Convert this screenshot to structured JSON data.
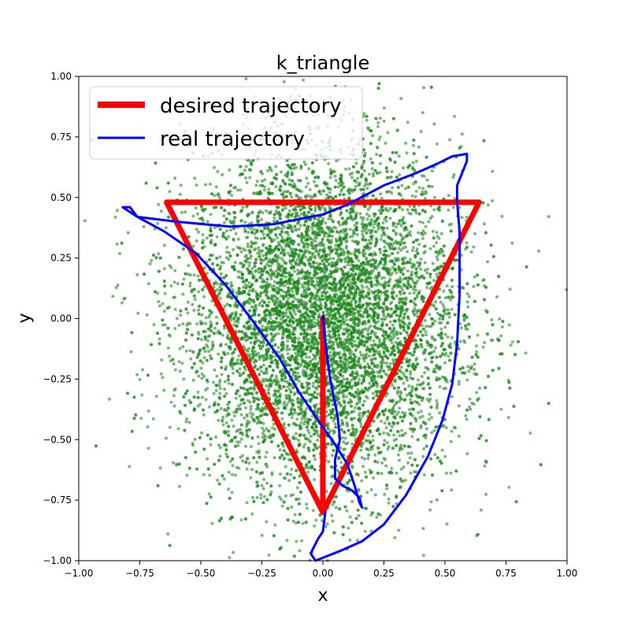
{
  "chart_data": {
    "type": "line",
    "title": "k_triangle",
    "xlabel": "x",
    "ylabel": "y",
    "xlim": [
      -1.0,
      1.0
    ],
    "ylim": [
      -1.0,
      1.0
    ],
    "x_ticks": [
      "−1.00",
      "−0.75",
      "−0.50",
      "−0.25",
      "0.00",
      "0.25",
      "0.50",
      "0.75",
      "1.00"
    ],
    "y_ticks": [
      "−1.00",
      "−0.75",
      "−0.50",
      "−0.25",
      "0.00",
      "0.25",
      "0.50",
      "0.75",
      "1.00"
    ],
    "x_tick_values": [
      -1.0,
      -0.75,
      -0.5,
      -0.25,
      0.0,
      0.25,
      0.5,
      0.75,
      1.0
    ],
    "y_tick_values": [
      -1.0,
      -0.75,
      -0.5,
      -0.25,
      0.0,
      0.25,
      0.5,
      0.75,
      1.0
    ],
    "grid": false,
    "legend_position": "upper-left",
    "series": [
      {
        "name": "desired trajectory",
        "color": "#ff0000",
        "points": [
          [
            0.0,
            0.0
          ],
          [
            0.0,
            -0.8
          ],
          [
            0.64,
            0.48
          ],
          [
            -0.64,
            0.48
          ],
          [
            0.0,
            -0.8
          ]
        ]
      },
      {
        "name": "real trajectory",
        "color": "#0000ff",
        "points": [
          [
            0.0,
            0.01
          ],
          [
            0.01,
            -0.1
          ],
          [
            0.03,
            -0.25
          ],
          [
            0.06,
            -0.4
          ],
          [
            0.07,
            -0.5
          ],
          [
            0.05,
            -0.58
          ],
          [
            0.05,
            -0.66
          ],
          [
            0.08,
            -0.69
          ],
          [
            0.12,
            -0.71
          ],
          [
            0.15,
            -0.74
          ],
          [
            0.16,
            -0.78
          ],
          [
            0.15,
            -0.76
          ],
          [
            0.13,
            -0.69
          ],
          [
            0.1,
            -0.6
          ],
          [
            0.05,
            -0.52
          ],
          [
            -0.02,
            -0.42
          ],
          [
            -0.1,
            -0.3
          ],
          [
            -0.18,
            -0.16
          ],
          [
            -0.28,
            -0.02
          ],
          [
            -0.4,
            0.14
          ],
          [
            -0.52,
            0.27
          ],
          [
            -0.65,
            0.36
          ],
          [
            -0.76,
            0.42
          ],
          [
            -0.79,
            0.46
          ],
          [
            -0.82,
            0.46
          ],
          [
            -0.76,
            0.42
          ],
          [
            -0.6,
            0.4
          ],
          [
            -0.38,
            0.38
          ],
          [
            -0.2,
            0.39
          ],
          [
            0.0,
            0.43
          ],
          [
            0.1,
            0.47
          ],
          [
            0.25,
            0.55
          ],
          [
            0.38,
            0.6
          ],
          [
            0.47,
            0.64
          ],
          [
            0.53,
            0.67
          ],
          [
            0.59,
            0.68
          ],
          [
            0.59,
            0.65
          ],
          [
            0.55,
            0.55
          ],
          [
            0.55,
            0.48
          ],
          [
            0.56,
            0.36
          ],
          [
            0.56,
            0.1
          ],
          [
            0.55,
            -0.1
          ],
          [
            0.53,
            -0.27
          ],
          [
            0.49,
            -0.42
          ],
          [
            0.43,
            -0.57
          ],
          [
            0.34,
            -0.73
          ],
          [
            0.25,
            -0.85
          ],
          [
            0.16,
            -0.92
          ],
          [
            0.07,
            -0.96
          ],
          [
            -0.03,
            -1.0
          ],
          [
            -0.05,
            -0.97
          ],
          [
            -0.02,
            -0.91
          ],
          [
            0.0,
            -0.88
          ],
          [
            0.01,
            -0.8
          ]
        ]
      }
    ],
    "scatter": {
      "color": "#228B22",
      "count": 9000,
      "center": [
        0.0,
        0.0
      ],
      "std": [
        0.28,
        0.35
      ]
    }
  }
}
